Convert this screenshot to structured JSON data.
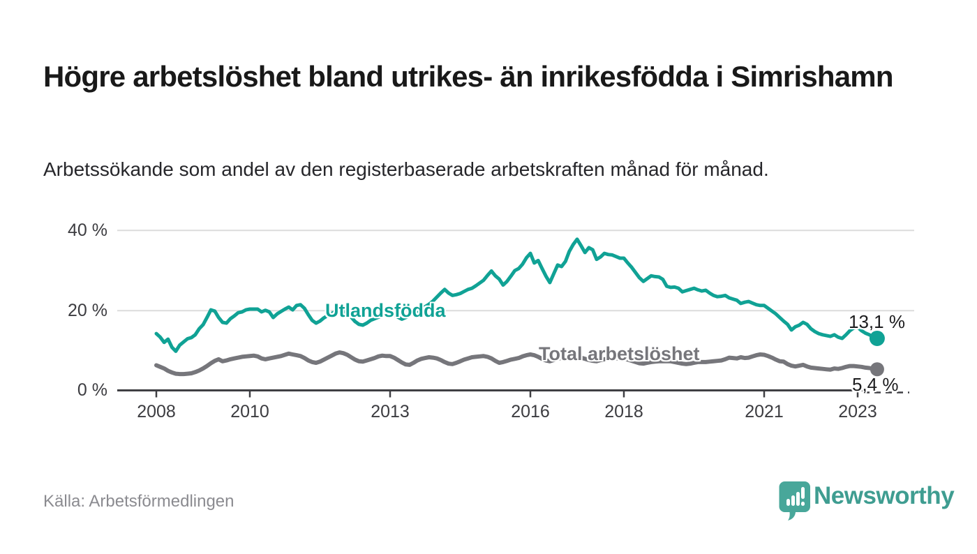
{
  "header": {
    "title": "Högre arbetslöshet bland utrikes- än inrikesfödda i Simrishamn",
    "subtitle": "Arbetssökande som andel av den registerbaserade arbetskraften månad för månad."
  },
  "footer": {
    "source": "Källa: Arbetsförmedlingen",
    "brand": "Newsworthy"
  },
  "colors": {
    "teal": "#10a295",
    "gray": "#76767b",
    "logo_teal": "#48a79a",
    "grid": "#dcdcdc",
    "axis": "#3f3f43",
    "text_dark": "#191919",
    "text_muted": "#8b8b90"
  },
  "chart_data": {
    "type": "line",
    "x_unit": "month",
    "x_start": "2008-01",
    "x_end": "2023-06",
    "ylim": [
      0,
      40
    ],
    "grid": "horizontal",
    "legend_position": "inline-labels",
    "y_ticks": [
      {
        "value": 0,
        "label": "0 %"
      },
      {
        "value": 20,
        "label": "20 %"
      },
      {
        "value": 40,
        "label": "40 %"
      }
    ],
    "x_ticks": [
      {
        "value": 2008,
        "label": "2008"
      },
      {
        "value": 2010,
        "label": "2010"
      },
      {
        "value": 2013,
        "label": "2013"
      },
      {
        "value": 2016,
        "label": "2016"
      },
      {
        "value": 2018,
        "label": "2018"
      },
      {
        "value": 2021,
        "label": "2021"
      },
      {
        "value": 2023,
        "label": "2023"
      }
    ],
    "series": [
      {
        "name": "Utlandsfödda",
        "color": "#10a295",
        "end_label": "13,1 %",
        "end_value": 13.1,
        "values": [
          14.3,
          13.4,
          12.1,
          12.9,
          10.9,
          9.9,
          11.4,
          12.2,
          13.0,
          13.3,
          14.0,
          15.5,
          16.5,
          18.3,
          20.2,
          19.9,
          18.3,
          17.1,
          16.9,
          18.0,
          18.7,
          19.5,
          19.7,
          20.2,
          20.4,
          20.4,
          20.4,
          19.7,
          20.1,
          19.7,
          18.3,
          19.2,
          19.8,
          20.4,
          20.9,
          20.2,
          21.3,
          21.5,
          20.6,
          19.0,
          17.6,
          16.9,
          17.4,
          18.2,
          18.8,
          19.3,
          19.8,
          19.5,
          19.9,
          19.4,
          18.4,
          17.3,
          16.6,
          16.4,
          16.9,
          17.6,
          18.0,
          18.4,
          18.8,
          19.1,
          19.4,
          19.0,
          18.4,
          17.9,
          18.3,
          18.8,
          19.4,
          19.9,
          20.5,
          21.0,
          21.6,
          22.4,
          23.4,
          24.4,
          25.3,
          24.4,
          23.8,
          24.0,
          24.3,
          24.8,
          25.3,
          25.6,
          26.2,
          26.9,
          27.6,
          28.8,
          29.9,
          28.7,
          27.9,
          26.4,
          27.3,
          28.6,
          30.0,
          30.5,
          31.6,
          33.2,
          34.3,
          31.9,
          32.5,
          30.5,
          28.6,
          27.0,
          29.2,
          31.4,
          31.0,
          32.3,
          34.8,
          36.5,
          37.8,
          36.2,
          34.5,
          35.7,
          35.2,
          32.8,
          33.4,
          34.3,
          34.0,
          33.9,
          33.5,
          33.1,
          33.1,
          31.9,
          30.8,
          29.5,
          28.2,
          27.3,
          28.0,
          28.7,
          28.5,
          28.4,
          27.8,
          26.1,
          25.8,
          25.9,
          25.6,
          24.7,
          25.0,
          25.3,
          25.6,
          25.2,
          24.9,
          25.1,
          24.4,
          23.8,
          23.5,
          23.6,
          23.8,
          23.2,
          22.9,
          22.6,
          21.8,
          22.1,
          22.3,
          21.9,
          21.5,
          21.3,
          21.3,
          20.6,
          19.9,
          19.2,
          18.3,
          17.4,
          16.6,
          15.2,
          16.0,
          16.4,
          17.1,
          16.6,
          15.5,
          14.8,
          14.3,
          14.0,
          13.8,
          13.6,
          14.0,
          13.4,
          13.1,
          14.0,
          15.0,
          15.7,
          15.9,
          15.0,
          14.4,
          14.0,
          13.5,
          13.1
        ]
      },
      {
        "name": "Total arbetslöshet",
        "color": "#76767b",
        "end_label": "5,4 %",
        "end_value": 5.4,
        "values": [
          6.4,
          6.0,
          5.6,
          5.0,
          4.6,
          4.3,
          4.2,
          4.2,
          4.3,
          4.4,
          4.7,
          5.1,
          5.6,
          6.2,
          6.9,
          7.5,
          7.9,
          7.4,
          7.6,
          7.9,
          8.1,
          8.3,
          8.5,
          8.6,
          8.7,
          8.8,
          8.6,
          8.1,
          7.9,
          8.1,
          8.3,
          8.5,
          8.7,
          9.0,
          9.3,
          9.1,
          8.9,
          8.7,
          8.2,
          7.6,
          7.2,
          7.0,
          7.3,
          7.8,
          8.3,
          8.8,
          9.3,
          9.6,
          9.4,
          9.0,
          8.4,
          7.8,
          7.4,
          7.3,
          7.6,
          7.9,
          8.2,
          8.6,
          8.8,
          8.7,
          8.7,
          8.3,
          7.7,
          7.1,
          6.6,
          6.5,
          7.0,
          7.6,
          8.0,
          8.2,
          8.4,
          8.3,
          8.1,
          7.7,
          7.2,
          6.8,
          6.7,
          7.0,
          7.4,
          7.8,
          8.1,
          8.4,
          8.5,
          8.6,
          8.7,
          8.5,
          8.1,
          7.5,
          7.0,
          7.2,
          7.5,
          7.8,
          8.0,
          8.2,
          8.6,
          8.9,
          9.1,
          8.9,
          8.5,
          8.0,
          7.6,
          7.4,
          7.7,
          8.0,
          8.2,
          8.3,
          8.4,
          8.5,
          8.5,
          8.3,
          8.0,
          7.7,
          7.5,
          7.4,
          7.7,
          7.9,
          8.0,
          8.0,
          8.1,
          8.1,
          8.0,
          7.8,
          7.5,
          7.2,
          6.9,
          6.8,
          7.0,
          7.2,
          7.3,
          7.4,
          7.4,
          7.4,
          7.4,
          7.2,
          7.0,
          6.8,
          6.7,
          6.8,
          7.0,
          7.2,
          7.2,
          7.2,
          7.3,
          7.4,
          7.5,
          7.6,
          7.9,
          8.3,
          8.2,
          8.1,
          8.4,
          8.2,
          8.3,
          8.6,
          8.9,
          9.1,
          9.0,
          8.7,
          8.3,
          7.8,
          7.4,
          7.3,
          6.7,
          6.3,
          6.1,
          6.3,
          6.5,
          6.1,
          5.8,
          5.7,
          5.6,
          5.5,
          5.4,
          5.3,
          5.6,
          5.5,
          5.7,
          6.0,
          6.2,
          6.2,
          6.1,
          6.0,
          5.8,
          5.7,
          5.5,
          5.4
        ]
      }
    ]
  }
}
